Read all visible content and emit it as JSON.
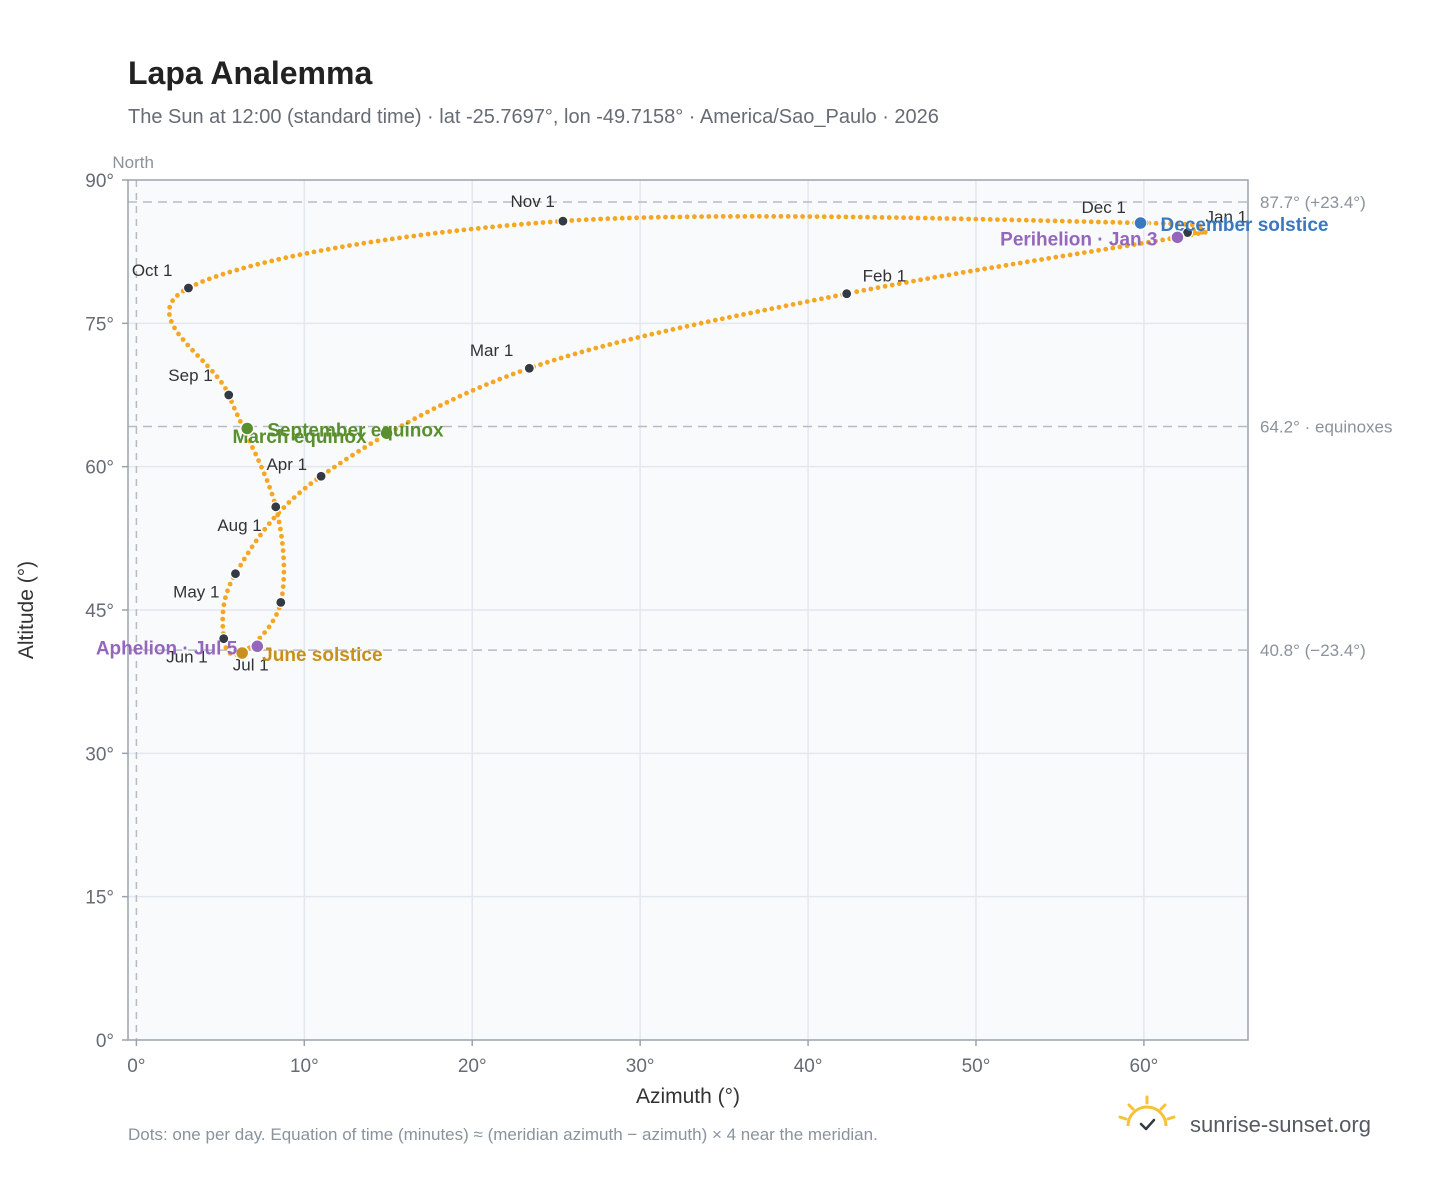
{
  "title": "Lapa Analemma",
  "subtitle": "The Sun at 12:00 (standard time) · lat -25.7697°, lon -49.7158° · America/Sao_Paulo · 2026",
  "footnote": "Dots: one per day. Equation of time (minutes) ≈ (meridian azimuth − azimuth) × 4 near the meridian.",
  "brand": {
    "name": "sunrise-sunset.org",
    "icon": "sun-logo-icon"
  },
  "colors": {
    "curve": "#f5a623",
    "month_dot": "#333a44",
    "equinox": "#5a8f2e",
    "june_solstice": "#c8901a",
    "december_solstice": "#3a78c0",
    "apsis": "#9467bd",
    "plot_bg": "#f8fafc",
    "grid": "#e3e8ee",
    "frame": "#9aa3ad"
  },
  "chart_data": {
    "type": "scatter",
    "title": "Lapa Analemma",
    "xlabel": "Azimuth (°)",
    "ylabel": "Altitude (°)",
    "xlim": [
      -0.5,
      66.2
    ],
    "ylim": [
      0,
      90
    ],
    "x_ticks": [
      {
        "value": 0,
        "label": "0°"
      },
      {
        "value": 10,
        "label": "10°"
      },
      {
        "value": 20,
        "label": "20°"
      },
      {
        "value": 30,
        "label": "30°"
      },
      {
        "value": 40,
        "label": "40°"
      },
      {
        "value": 50,
        "label": "50°"
      },
      {
        "value": 60,
        "label": "60°"
      }
    ],
    "y_ticks": [
      {
        "value": 0,
        "label": "0°"
      },
      {
        "value": 15,
        "label": "15°"
      },
      {
        "value": 30,
        "label": "30°"
      },
      {
        "value": 45,
        "label": "45°"
      },
      {
        "value": 60,
        "label": "60°"
      },
      {
        "value": 75,
        "label": "75°"
      },
      {
        "value": 90,
        "label": "90°"
      }
    ],
    "grid": true,
    "north_line": {
      "azimuth": 0,
      "label": "North"
    },
    "reference_lines": [
      {
        "altitude": 87.7,
        "label": "87.7° (+23.4°)"
      },
      {
        "altitude": 64.2,
        "label": "64.2° · equinoxes"
      },
      {
        "altitude": 40.8,
        "label": "40.8° (−23.4°)"
      }
    ],
    "month_markers": [
      {
        "label": "Jan 1",
        "azimuth": 62.6,
        "altitude": 84.5
      },
      {
        "label": "Feb 1",
        "azimuth": 42.3,
        "altitude": 78.1
      },
      {
        "label": "Mar 1",
        "azimuth": 23.4,
        "altitude": 70.3
      },
      {
        "label": "Apr 1",
        "azimuth": 11.0,
        "altitude": 59.0
      },
      {
        "label": "May 1",
        "azimuth": 5.9,
        "altitude": 48.8
      },
      {
        "label": "Jun 1",
        "azimuth": 5.2,
        "altitude": 42.0
      },
      {
        "label": "Jul 1",
        "azimuth": 8.6,
        "altitude": 45.8
      },
      {
        "label": "Aug 1",
        "azimuth": 8.3,
        "altitude": 55.8
      },
      {
        "label": "Sep 1",
        "azimuth": 5.5,
        "altitude": 67.5
      },
      {
        "label": "Oct 1",
        "azimuth": 3.1,
        "altitude": 78.7
      },
      {
        "label": "Nov 1",
        "azimuth": 25.4,
        "altitude": 85.7
      },
      {
        "label": "Dec 1",
        "azimuth": 60.0,
        "altitude": 85.5
      }
    ],
    "events": [
      {
        "label": "March equinox",
        "azimuth": 14.9,
        "altitude": 63.5,
        "color_key": "equinox"
      },
      {
        "label": "September equinox",
        "azimuth": 6.6,
        "altitude": 64.0,
        "color_key": "equinox"
      },
      {
        "label": "June solstice",
        "azimuth": 6.3,
        "altitude": 40.5,
        "color_key": "june_solstice"
      },
      {
        "label": "December solstice",
        "azimuth": 59.8,
        "altitude": 85.5,
        "color_key": "december_solstice"
      },
      {
        "label": "Perihelion · Jan 3",
        "azimuth": 62.0,
        "altitude": 84.0,
        "color_key": "apsis"
      },
      {
        "label": "Aphelion · Jul 5",
        "azimuth": 7.2,
        "altitude": 41.2,
        "color_key": "apsis"
      }
    ],
    "series": [
      {
        "type": "daily-dots",
        "dots_per_year": 365,
        "points": [
          [
            62.6,
            84.5
          ],
          [
            62.0,
            84.0
          ],
          [
            42.3,
            78.1
          ],
          [
            23.4,
            70.3
          ],
          [
            11.0,
            59.0
          ],
          [
            5.9,
            48.8
          ],
          [
            5.2,
            42.0
          ],
          [
            6.3,
            40.5
          ],
          [
            8.6,
            45.8
          ],
          [
            8.3,
            55.8
          ],
          [
            5.5,
            67.5
          ],
          [
            3.1,
            78.7
          ],
          [
            25.4,
            85.7
          ],
          [
            60.0,
            85.5
          ],
          [
            62.6,
            84.5
          ]
        ]
      }
    ]
  }
}
